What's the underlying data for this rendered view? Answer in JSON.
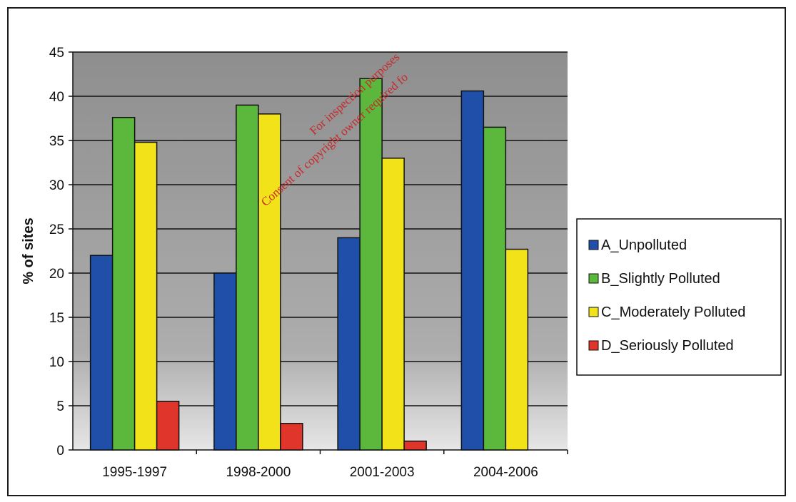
{
  "chart_data": {
    "type": "bar",
    "categories": [
      "1995-1997",
      "1998-2000",
      "2001-2003",
      "2004-2006"
    ],
    "series": [
      {
        "name": "A_Unpolluted",
        "color": "#1f4fa8",
        "values": [
          22,
          20,
          24,
          40.6
        ]
      },
      {
        "name": "B_Slightly Polluted",
        "color": "#5cb83c",
        "values": [
          37.6,
          39,
          42,
          36.5
        ]
      },
      {
        "name": "C_Moderately Polluted",
        "color": "#f2e21a",
        "values": [
          34.8,
          38,
          33,
          22.7
        ]
      },
      {
        "name": "D_Seriously Polluted",
        "color": "#e0352b",
        "values": [
          5.5,
          3,
          1,
          0
        ]
      }
    ],
    "title": "",
    "xlabel": "",
    "ylabel": "% of sites",
    "ylim": [
      0,
      45
    ],
    "yticks": [
      0,
      5,
      10,
      15,
      20,
      25,
      30,
      35,
      40,
      45
    ],
    "grid": true,
    "legend_position": "right",
    "plot_background": "#9c9c9c"
  },
  "watermark": {
    "line1": "For inspection purposes",
    "line2": "Consent of copyright owner required fo"
  }
}
